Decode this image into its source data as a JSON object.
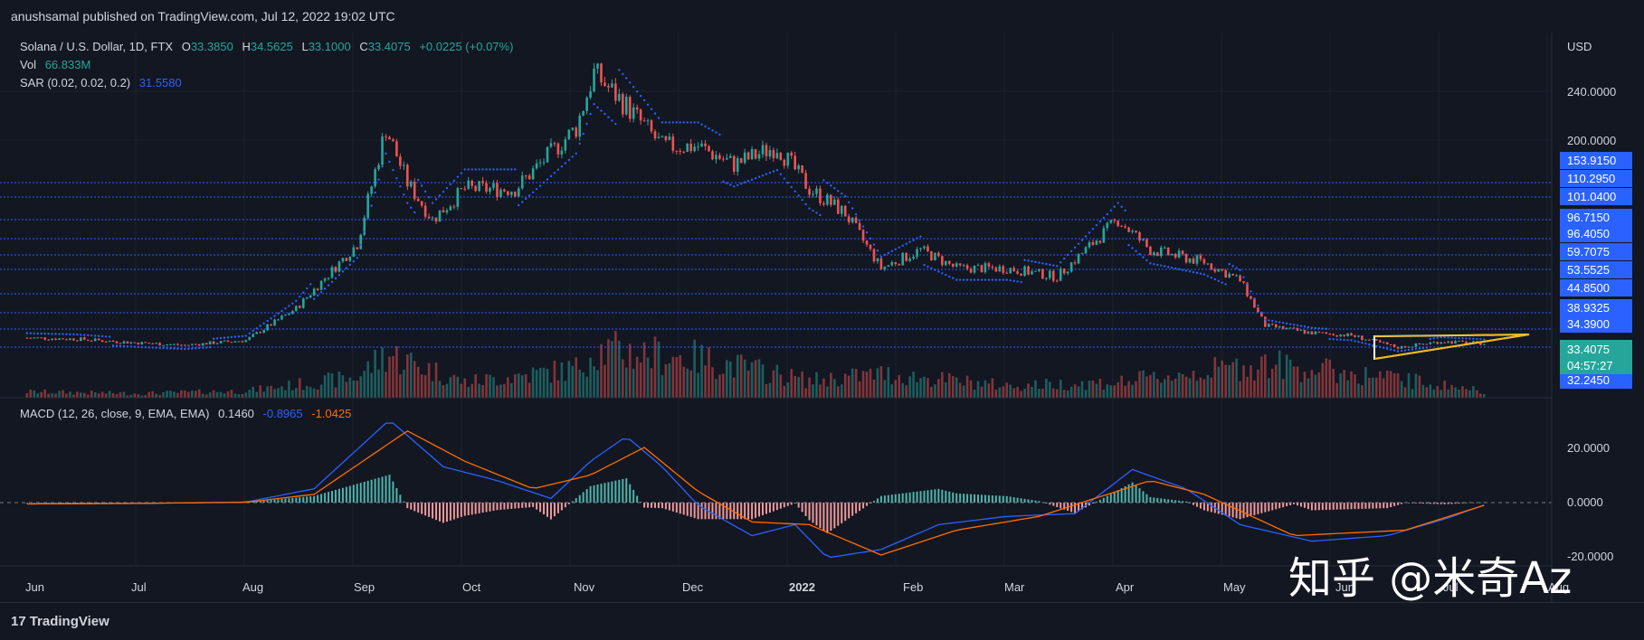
{
  "publisher": "anushsamal published on TradingView.com, Jul 12, 2022 19:02 UTC",
  "legend": {
    "symbol": "Solana / U.S. Dollar, 1D, FTX",
    "o_label": "O",
    "o": "33.3850",
    "h_label": "H",
    "h": "34.5625",
    "l_label": "L",
    "l": "33.1000",
    "c_label": "C",
    "c": "33.4075",
    "change": "+0.0225 (+0.07%)",
    "vol_label": "Vol",
    "vol": "66.833M",
    "sar_label": "SAR (0.02, 0.02, 0.2)",
    "sar": "31.5580",
    "macd_label": "MACD (12, 26, close, 9, EMA, EMA)",
    "macd_hist": "0.1460",
    "macd_line": "-0.8965",
    "macd_signal": "-1.0425"
  },
  "colors": {
    "background": "#131722",
    "up": "#26a69a",
    "down": "#ef5350",
    "sar": "#2962ff",
    "macd": "#2962ff",
    "signal": "#ff6d00",
    "level_line": "#2962ff",
    "label_bg": "#2962ff",
    "price_bg": "#26a69a"
  },
  "chart_data": {
    "type": "candlestick",
    "currency": "USD",
    "price_axis_ticks": [
      "240.0000",
      "200.0000"
    ],
    "x_labels": [
      "Jun",
      "Jul",
      "Aug",
      "Sep",
      "Oct",
      "Nov",
      "Dec",
      "2022",
      "Feb",
      "Mar",
      "Apr",
      "May",
      "Jun",
      "Jul",
      "Aug"
    ],
    "level_labels": [
      "153.9150",
      "110.2950",
      "101.0400",
      "96.7150",
      "96.4050",
      "59.7075",
      "53.5525",
      "44.8500",
      "38.9325",
      "34.3900",
      "32.2450"
    ],
    "last_price": "33.4075",
    "countdown": "04:57:27",
    "price_series": [
      [
        "2021-06-01",
        38
      ],
      [
        "2021-06-15",
        37
      ],
      [
        "2021-07-01",
        34
      ],
      [
        "2021-07-15",
        32
      ],
      [
        "2021-08-01",
        36
      ],
      [
        "2021-08-15",
        62
      ],
      [
        "2021-09-01",
        115
      ],
      [
        "2021-09-09",
        210
      ],
      [
        "2021-09-15",
        165
      ],
      [
        "2021-09-22",
        135
      ],
      [
        "2021-10-01",
        160
      ],
      [
        "2021-10-15",
        160
      ],
      [
        "2021-11-01",
        210
      ],
      [
        "2021-11-06",
        255
      ],
      [
        "2021-11-15",
        228
      ],
      [
        "2021-11-25",
        195
      ],
      [
        "2021-12-05",
        195
      ],
      [
        "2021-12-15",
        180
      ],
      [
        "2021-12-27",
        195
      ],
      [
        "2022-01-05",
        160
      ],
      [
        "2022-01-15",
        140
      ],
      [
        "2022-01-25",
        95
      ],
      [
        "2022-02-05",
        110
      ],
      [
        "2022-02-15",
        95
      ],
      [
        "2022-03-01",
        95
      ],
      [
        "2022-03-15",
        88
      ],
      [
        "2022-04-01",
        135
      ],
      [
        "2022-04-10",
        110
      ],
      [
        "2022-04-25",
        100
      ],
      [
        "2022-05-05",
        85
      ],
      [
        "2022-05-12",
        48
      ],
      [
        "2022-05-25",
        42
      ],
      [
        "2022-06-05",
        40
      ],
      [
        "2022-06-18",
        30
      ],
      [
        "2022-06-30",
        35
      ],
      [
        "2022-07-12",
        33.4
      ]
    ],
    "volume_series": [
      [
        "2021-06-01",
        35
      ],
      [
        "2021-07-01",
        25
      ],
      [
        "2021-08-01",
        40
      ],
      [
        "2021-09-01",
        120
      ],
      [
        "2021-09-09",
        260
      ],
      [
        "2021-10-01",
        90
      ],
      [
        "2021-11-01",
        170
      ],
      [
        "2021-11-06",
        280
      ],
      [
        "2021-12-05",
        230
      ],
      [
        "2022-01-05",
        100
      ],
      [
        "2022-01-25",
        140
      ],
      [
        "2022-03-01",
        70
      ],
      [
        "2022-04-01",
        90
      ],
      [
        "2022-05-12",
        200
      ],
      [
        "2022-06-18",
        110
      ],
      [
        "2022-07-12",
        40
      ]
    ],
    "macd_axis_ticks": [
      "20.0000",
      "0.0000",
      "-20.0000"
    ],
    "macd_series": [
      [
        "2021-06-01",
        -0.5
      ],
      [
        "2021-07-01",
        -0.3
      ],
      [
        "2021-08-01",
        0.2
      ],
      [
        "2021-08-20",
        5
      ],
      [
        "2021-09-10",
        30
      ],
      [
        "2021-09-25",
        13
      ],
      [
        "2021-10-10",
        8
      ],
      [
        "2021-10-25",
        1.5
      ],
      [
        "2021-11-05",
        15
      ],
      [
        "2021-11-15",
        24
      ],
      [
        "2021-11-25",
        13
      ],
      [
        "2021-12-05",
        -1
      ],
      [
        "2021-12-20",
        -12
      ],
      [
        "2022-01-01",
        -8
      ],
      [
        "2022-01-10",
        -20
      ],
      [
        "2022-01-25",
        -17
      ],
      [
        "2022-02-10",
        -8
      ],
      [
        "2022-03-01",
        -5
      ],
      [
        "2022-03-20",
        -4
      ],
      [
        "2022-04-05",
        12
      ],
      [
        "2022-04-20",
        5
      ],
      [
        "2022-05-05",
        -8
      ],
      [
        "2022-05-25",
        -14
      ],
      [
        "2022-06-15",
        -12
      ],
      [
        "2022-07-01",
        -6
      ],
      [
        "2022-07-12",
        -0.9
      ]
    ],
    "signal_series": [
      [
        "2021-06-01",
        -0.5
      ],
      [
        "2021-07-01",
        -0.3
      ],
      [
        "2021-08-01",
        0.1
      ],
      [
        "2021-08-20",
        3
      ],
      [
        "2021-09-15",
        26
      ],
      [
        "2021-10-01",
        15
      ],
      [
        "2021-10-20",
        5
      ],
      [
        "2021-11-05",
        10
      ],
      [
        "2021-11-20",
        20
      ],
      [
        "2021-12-05",
        4
      ],
      [
        "2021-12-20",
        -7
      ],
      [
        "2022-01-05",
        -8
      ],
      [
        "2022-01-25",
        -19
      ],
      [
        "2022-02-15",
        -10
      ],
      [
        "2022-03-10",
        -5
      ],
      [
        "2022-04-10",
        8
      ],
      [
        "2022-04-25",
        3
      ],
      [
        "2022-05-20",
        -12
      ],
      [
        "2022-06-20",
        -10
      ],
      [
        "2022-07-12",
        -1
      ]
    ]
  },
  "watermark": "知乎 @米奇Az",
  "logo": "TradingView"
}
